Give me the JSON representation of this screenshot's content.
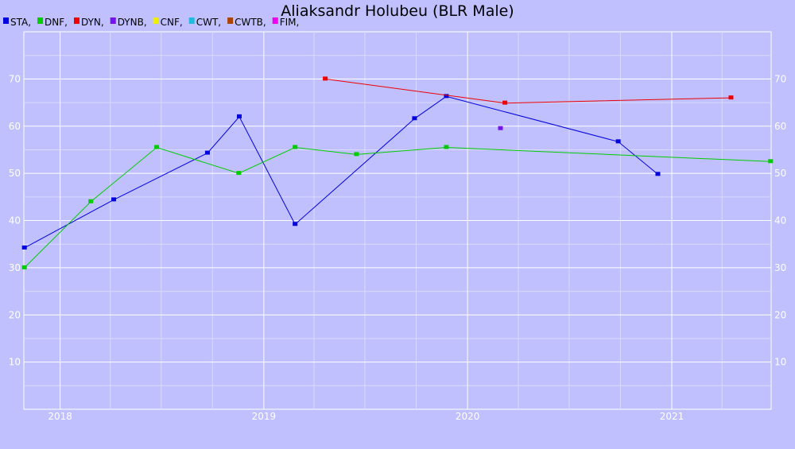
{
  "chart_data": {
    "type": "line",
    "title": "Aliaksandr Holubeu (BLR Male)",
    "xlabel": "",
    "ylabel": "",
    "x_ticks": [
      "2018",
      "2019",
      "2020",
      "2021"
    ],
    "y_ticks": [
      10,
      20,
      30,
      40,
      50,
      60,
      70
    ],
    "xlim": [
      "2017-10-28",
      "2021-06-28"
    ],
    "ylim": [
      0,
      80
    ],
    "grid": true,
    "legend_position": "top-left",
    "legend": [
      {
        "name": "STA",
        "label": "STA,",
        "color": "#0000dd"
      },
      {
        "name": "DNF",
        "label": "DNF,",
        "color": "#00cc00"
      },
      {
        "name": "DYN",
        "label": "DYN,",
        "color": "#ee0000"
      },
      {
        "name": "DYNB",
        "label": "DYNB,",
        "color": "#7711ee"
      },
      {
        "name": "CNF",
        "label": "CNF,",
        "color": "#eeee00"
      },
      {
        "name": "CWT",
        "label": "CWT,",
        "color": "#22bbdd"
      },
      {
        "name": "CWTB",
        "label": "CWTB,",
        "color": "#aa4400"
      },
      {
        "name": "FIM",
        "label": "FIM,",
        "color": "#ee00ee"
      }
    ],
    "series": [
      {
        "name": "STA",
        "color": "#0000dd",
        "points": [
          {
            "x": "2017-10-29",
            "y": 34.2
          },
          {
            "x": "2018-04-07",
            "y": 44.4
          },
          {
            "x": "2018-09-22",
            "y": 54.3
          },
          {
            "x": "2018-11-18",
            "y": 62.0
          },
          {
            "x": "2019-02-26",
            "y": 39.2
          },
          {
            "x": "2019-09-28",
            "y": 61.6
          },
          {
            "x": "2019-11-24",
            "y": 66.3
          },
          {
            "x": "2020-09-27",
            "y": 56.7
          },
          {
            "x": "2020-12-07",
            "y": 49.8
          }
        ]
      },
      {
        "name": "DNF",
        "color": "#00cc00",
        "points": [
          {
            "x": "2017-10-29",
            "y": 30.0
          },
          {
            "x": "2018-02-25",
            "y": 44.0
          },
          {
            "x": "2018-06-23",
            "y": 55.5
          },
          {
            "x": "2018-11-17",
            "y": 50.0
          },
          {
            "x": "2019-02-26",
            "y": 55.5
          },
          {
            "x": "2019-06-16",
            "y": 54.0
          },
          {
            "x": "2019-11-24",
            "y": 55.5
          },
          {
            "x": "2021-06-27",
            "y": 52.5
          }
        ]
      },
      {
        "name": "DYN",
        "color": "#ee0000",
        "points": [
          {
            "x": "2019-04-21",
            "y": 70.0
          },
          {
            "x": "2020-03-08",
            "y": 64.9
          },
          {
            "x": "2021-04-17",
            "y": 66.0
          }
        ]
      },
      {
        "name": "DYNB",
        "color": "#7711ee",
        "points": [
          {
            "x": "2020-02-29",
            "y": 59.5
          }
        ]
      }
    ]
  }
}
